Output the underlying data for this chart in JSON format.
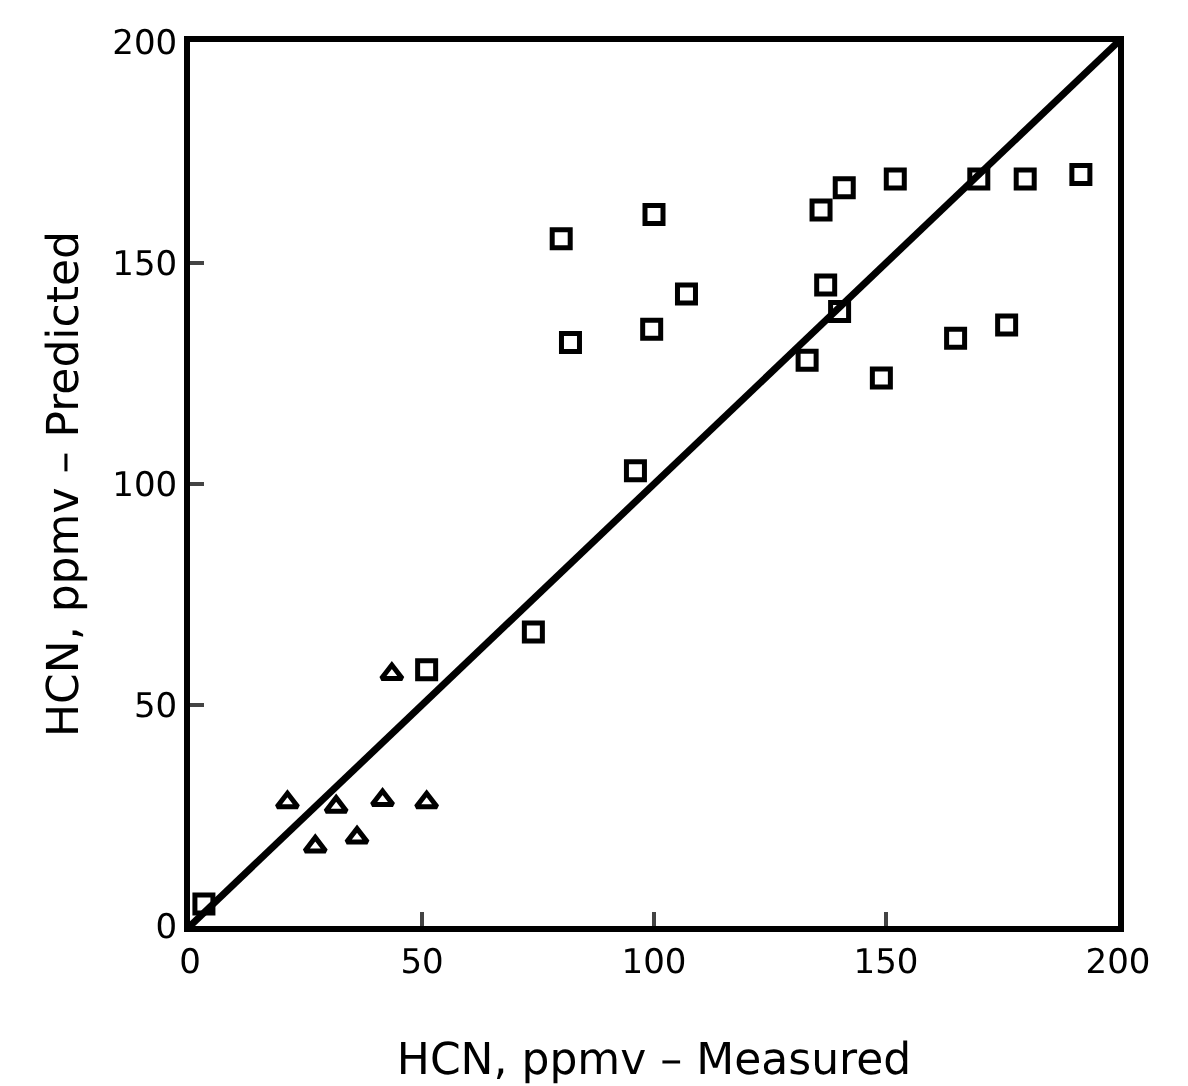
{
  "chart_data": {
    "type": "scatter",
    "xlabel": "HCN, ppmv – Measured",
    "ylabel": "HCN, ppmv – Predicted",
    "xlim": [
      0,
      200
    ],
    "ylim": [
      0,
      200
    ],
    "xticks": [
      0,
      50,
      100,
      150,
      200
    ],
    "yticks": [
      0,
      50,
      100,
      150,
      200
    ],
    "series": [
      {
        "type": "scatter",
        "marker": "square",
        "color": "#000000",
        "x": [
          80,
          100,
          82,
          99.5,
          107,
          136,
          141,
          152,
          170,
          180,
          192,
          133,
          140,
          149,
          165,
          176,
          137,
          96,
          74,
          51,
          3
        ],
        "values": [
          155.5,
          161,
          132,
          135,
          143,
          162,
          167,
          169,
          169,
          169,
          170,
          128,
          139,
          124,
          133,
          136,
          145,
          103,
          66.5,
          58,
          5
        ]
      },
      {
        "type": "scatter",
        "marker": "triangle",
        "color": "#000000",
        "x": [
          43.5,
          21,
          31.5,
          41.5,
          51,
          27,
          36
        ],
        "values": [
          57,
          28,
          27,
          28.5,
          28,
          18,
          20
        ]
      },
      {
        "type": "line",
        "marker": "none",
        "color": "#000000",
        "x": [
          0,
          200
        ],
        "values": [
          0,
          200
        ]
      }
    ]
  }
}
